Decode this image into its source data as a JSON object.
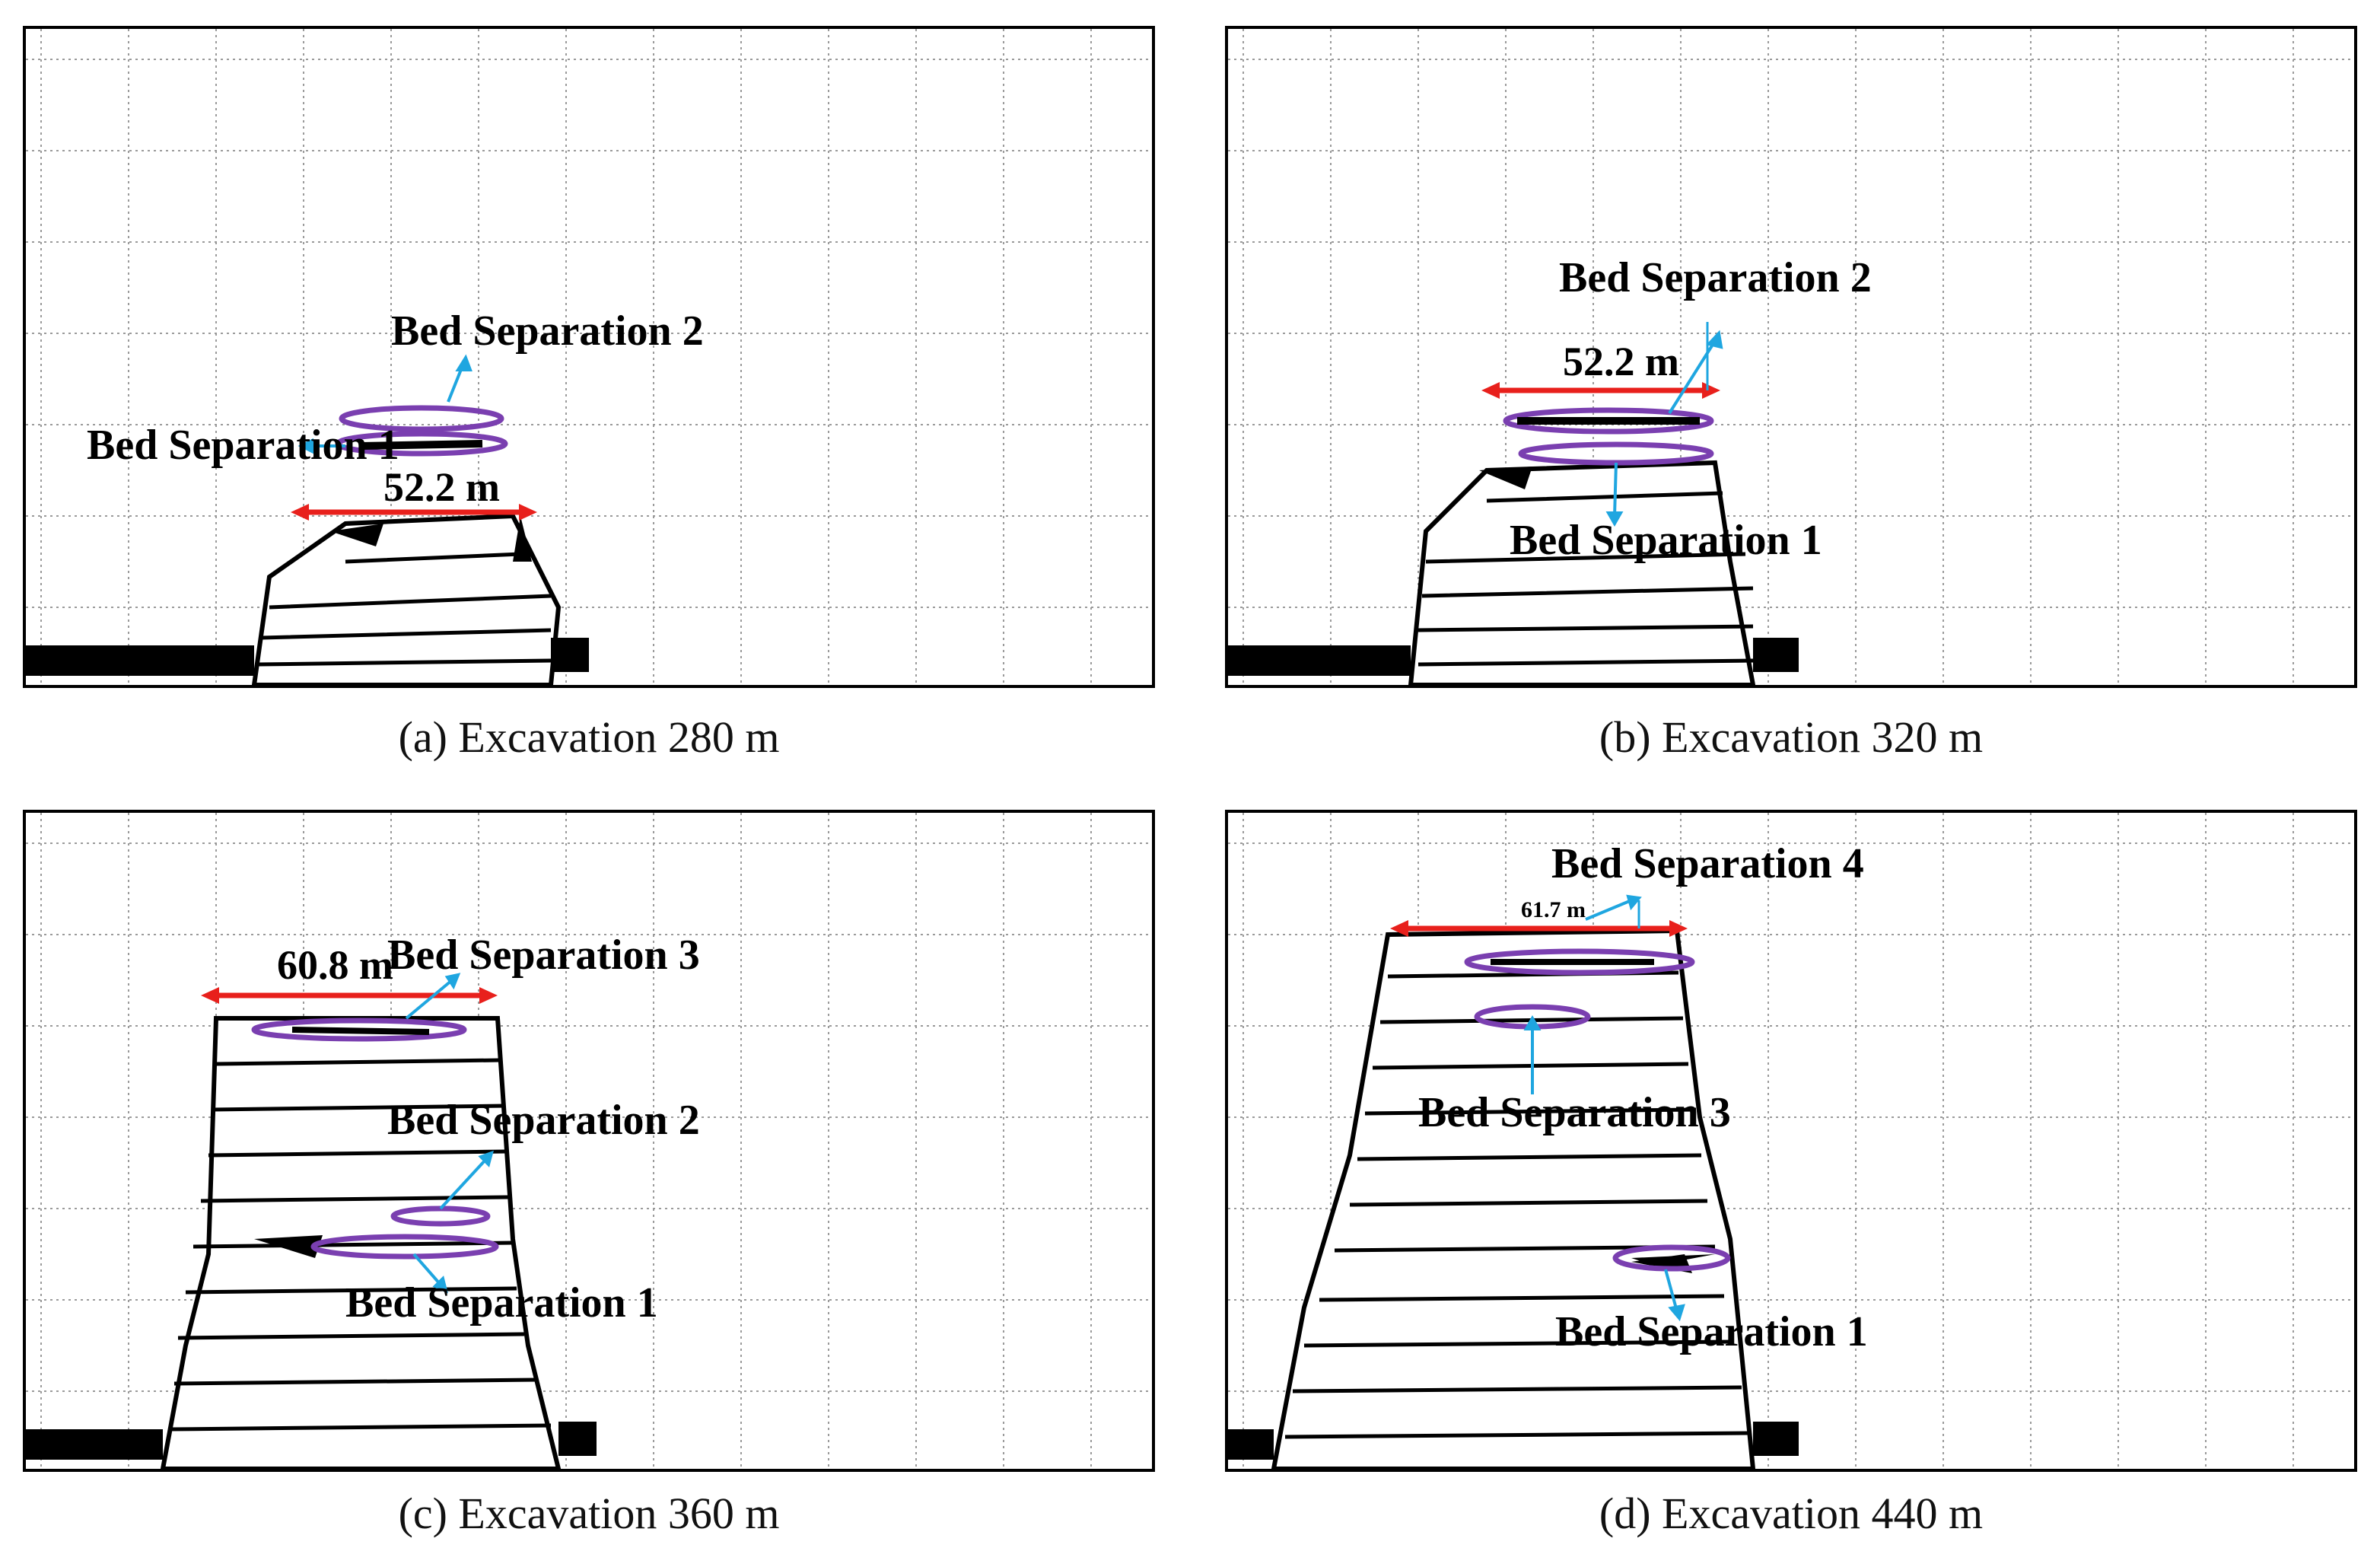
{
  "figure": {
    "panels": [
      {
        "caption": "(a) Excavation 280 m",
        "span_label": "52.2 m",
        "labels": [
          "Bed Separation 2",
          "Bed Separation 1"
        ]
      },
      {
        "caption": "(b) Excavation 320 m",
        "span_label": "52.2 m",
        "labels": [
          "Bed Separation 2",
          "Bed Separation 1"
        ]
      },
      {
        "caption": "(c) Excavation 360 m",
        "span_label": "60.8 m",
        "labels": [
          "Bed Separation 3",
          "Bed Separation 2",
          "Bed Separation 1"
        ]
      },
      {
        "caption": "(d) Excavation 440 m",
        "span_label": "61.7 m",
        "labels": [
          "Bed Separation 4",
          "Bed Separation 3",
          "Bed Separation 1"
        ]
      }
    ]
  },
  "colors": {
    "span_arrow": "#e8201c",
    "separation_ellipse": "#7a3fb0",
    "leader_arrow": "#1fa6e0",
    "strata": "#000000"
  }
}
